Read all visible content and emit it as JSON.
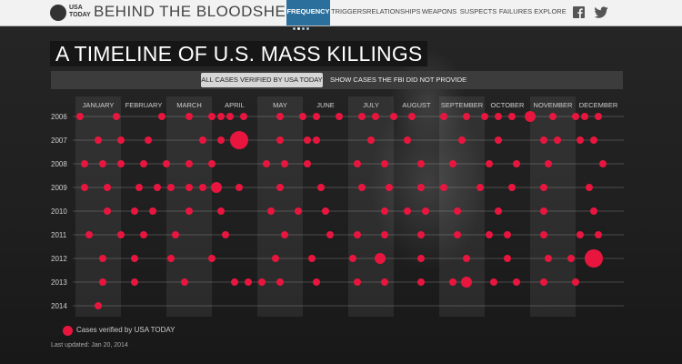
{
  "header": {
    "logo_text_line1": "USA",
    "logo_text_line2": "TODAY",
    "site_title": "BEHIND THE BLOODSHED",
    "nav": [
      {
        "label": "FREQUENCY",
        "active": true
      },
      {
        "label": "TRIGGERS",
        "active": false
      },
      {
        "label": "RELATIONSHIPS",
        "active": false
      },
      {
        "label": "WEAPONS",
        "active": false
      },
      {
        "label": "SUSPECTS",
        "active": false
      },
      {
        "label": "FAILURES",
        "active": false
      },
      {
        "label": "EXPLORE",
        "active": false
      }
    ],
    "social": [
      "facebook-icon",
      "twitter-icon"
    ]
  },
  "title": "A TIMELINE OF U.S. MASS KILLINGS",
  "toggles": {
    "all_label": "ALL CASES VERIFIED BY USA TODAY",
    "hidden_label": "SHOW CASES THE FBI DID NOT PROVIDE"
  },
  "legend": {
    "label": "Cases verified by USA TODAY"
  },
  "updated": "Last updated: Jan 20, 2014",
  "colors": {
    "dot": "#e8163f",
    "nav_active": "#2b6f9c"
  },
  "chart_data": {
    "type": "scatter",
    "months": [
      "JANUARY",
      "FEBRUARY",
      "MARCH",
      "APRIL",
      "MAY",
      "JUNE",
      "JULY",
      "AUGUST",
      "SEPTEMBER",
      "OCTOBER",
      "NOVEMBER",
      "DECEMBER"
    ],
    "years": [
      "2006",
      "2007",
      "2008",
      "2009",
      "2010",
      "2011",
      "2012",
      "2013",
      "2014"
    ],
    "series": [
      {
        "year": "2006",
        "events": [
          {
            "month": 1.1,
            "size": 1
          },
          {
            "month": 1.9,
            "size": 1
          },
          {
            "month": 2.9,
            "size": 1
          },
          {
            "month": 3.5,
            "size": 1
          },
          {
            "month": 4.0,
            "size": 1
          },
          {
            "month": 4.2,
            "size": 1
          },
          {
            "month": 4.4,
            "size": 1
          },
          {
            "month": 4.7,
            "size": 1
          },
          {
            "month": 5.5,
            "size": 1
          },
          {
            "month": 6.0,
            "size": 1
          },
          {
            "month": 6.3,
            "size": 1
          },
          {
            "month": 6.8,
            "size": 1
          },
          {
            "month": 7.3,
            "size": 1
          },
          {
            "month": 7.6,
            "size": 1
          },
          {
            "month": 8.0,
            "size": 1
          },
          {
            "month": 8.4,
            "size": 1
          },
          {
            "month": 9.1,
            "size": 1
          },
          {
            "month": 9.6,
            "size": 1
          },
          {
            "month": 10.0,
            "size": 1
          },
          {
            "month": 10.3,
            "size": 1
          },
          {
            "month": 10.6,
            "size": 1
          },
          {
            "month": 11.0,
            "size": 2
          },
          {
            "month": 11.5,
            "size": 1
          },
          {
            "month": 12.0,
            "size": 1
          },
          {
            "month": 12.2,
            "size": 1
          },
          {
            "month": 12.5,
            "size": 1
          }
        ]
      },
      {
        "year": "2007",
        "events": [
          {
            "month": 1.5,
            "size": 1
          },
          {
            "month": 2.0,
            "size": 1
          },
          {
            "month": 2.6,
            "size": 1
          },
          {
            "month": 3.8,
            "size": 1
          },
          {
            "month": 4.2,
            "size": 1
          },
          {
            "month": 4.6,
            "size": 3
          },
          {
            "month": 5.5,
            "size": 1
          },
          {
            "month": 6.1,
            "size": 1
          },
          {
            "month": 6.3,
            "size": 1
          },
          {
            "month": 7.5,
            "size": 1
          },
          {
            "month": 8.3,
            "size": 1
          },
          {
            "month": 9.5,
            "size": 1
          },
          {
            "month": 10.3,
            "size": 1
          },
          {
            "month": 11.3,
            "size": 1
          },
          {
            "month": 11.6,
            "size": 1
          },
          {
            "month": 12.1,
            "size": 1
          },
          {
            "month": 12.4,
            "size": 1
          }
        ]
      },
      {
        "year": "2008",
        "events": [
          {
            "month": 1.2,
            "size": 1
          },
          {
            "month": 1.6,
            "size": 1
          },
          {
            "month": 2.0,
            "size": 1
          },
          {
            "month": 2.5,
            "size": 1
          },
          {
            "month": 3.0,
            "size": 1
          },
          {
            "month": 3.5,
            "size": 1
          },
          {
            "month": 4.0,
            "size": 1
          },
          {
            "month": 5.2,
            "size": 1
          },
          {
            "month": 5.6,
            "size": 1
          },
          {
            "month": 6.1,
            "size": 1
          },
          {
            "month": 7.2,
            "size": 1
          },
          {
            "month": 7.8,
            "size": 1
          },
          {
            "month": 8.6,
            "size": 1
          },
          {
            "month": 9.3,
            "size": 1
          },
          {
            "month": 10.1,
            "size": 1
          },
          {
            "month": 10.7,
            "size": 1
          },
          {
            "month": 11.4,
            "size": 1
          },
          {
            "month": 12.6,
            "size": 1
          }
        ]
      },
      {
        "year": "2009",
        "events": [
          {
            "month": 1.2,
            "size": 1
          },
          {
            "month": 1.7,
            "size": 1
          },
          {
            "month": 2.4,
            "size": 1
          },
          {
            "month": 2.8,
            "size": 1
          },
          {
            "month": 3.1,
            "size": 1
          },
          {
            "month": 3.5,
            "size": 1
          },
          {
            "month": 3.8,
            "size": 1
          },
          {
            "month": 4.1,
            "size": 2
          },
          {
            "month": 4.6,
            "size": 1
          },
          {
            "month": 5.5,
            "size": 1
          },
          {
            "month": 6.4,
            "size": 1
          },
          {
            "month": 7.3,
            "size": 1
          },
          {
            "month": 7.9,
            "size": 1
          },
          {
            "month": 8.6,
            "size": 1
          },
          {
            "month": 9.1,
            "size": 1
          },
          {
            "month": 9.9,
            "size": 1
          },
          {
            "month": 10.6,
            "size": 1
          },
          {
            "month": 11.3,
            "size": 1
          },
          {
            "month": 12.3,
            "size": 1
          }
        ]
      },
      {
        "year": "2010",
        "events": [
          {
            "month": 1.7,
            "size": 1
          },
          {
            "month": 2.3,
            "size": 1
          },
          {
            "month": 2.7,
            "size": 1
          },
          {
            "month": 3.5,
            "size": 1
          },
          {
            "month": 4.2,
            "size": 1
          },
          {
            "month": 5.3,
            "size": 1
          },
          {
            "month": 5.9,
            "size": 1
          },
          {
            "month": 6.5,
            "size": 1
          },
          {
            "month": 7.8,
            "size": 1
          },
          {
            "month": 8.3,
            "size": 1
          },
          {
            "month": 8.7,
            "size": 1
          },
          {
            "month": 9.4,
            "size": 1
          },
          {
            "month": 10.3,
            "size": 1
          },
          {
            "month": 11.3,
            "size": 1
          },
          {
            "month": 12.4,
            "size": 1
          }
        ]
      },
      {
        "year": "2011",
        "events": [
          {
            "month": 1.3,
            "size": 1
          },
          {
            "month": 2.0,
            "size": 1
          },
          {
            "month": 2.5,
            "size": 1
          },
          {
            "month": 3.2,
            "size": 1
          },
          {
            "month": 4.3,
            "size": 1
          },
          {
            "month": 5.6,
            "size": 1
          },
          {
            "month": 6.6,
            "size": 1
          },
          {
            "month": 7.2,
            "size": 1
          },
          {
            "month": 7.8,
            "size": 1
          },
          {
            "month": 8.6,
            "size": 1
          },
          {
            "month": 9.4,
            "size": 1
          },
          {
            "month": 10.1,
            "size": 1
          },
          {
            "month": 10.5,
            "size": 1
          },
          {
            "month": 11.3,
            "size": 1
          },
          {
            "month": 12.1,
            "size": 1
          },
          {
            "month": 12.5,
            "size": 1
          }
        ]
      },
      {
        "year": "2012",
        "events": [
          {
            "month": 1.6,
            "size": 1
          },
          {
            "month": 2.3,
            "size": 1
          },
          {
            "month": 3.1,
            "size": 1
          },
          {
            "month": 4.0,
            "size": 1
          },
          {
            "month": 5.4,
            "size": 1
          },
          {
            "month": 6.2,
            "size": 1
          },
          {
            "month": 7.1,
            "size": 1
          },
          {
            "month": 7.7,
            "size": 2
          },
          {
            "month": 8.6,
            "size": 1
          },
          {
            "month": 9.6,
            "size": 1
          },
          {
            "month": 10.5,
            "size": 1
          },
          {
            "month": 11.4,
            "size": 1
          },
          {
            "month": 11.9,
            "size": 1
          },
          {
            "month": 12.4,
            "size": 3
          }
        ]
      },
      {
        "year": "2013",
        "events": [
          {
            "month": 1.6,
            "size": 1
          },
          {
            "month": 2.3,
            "size": 1
          },
          {
            "month": 3.4,
            "size": 1
          },
          {
            "month": 4.5,
            "size": 1
          },
          {
            "month": 4.8,
            "size": 1
          },
          {
            "month": 5.1,
            "size": 1
          },
          {
            "month": 5.5,
            "size": 1
          },
          {
            "month": 6.3,
            "size": 1
          },
          {
            "month": 7.2,
            "size": 1
          },
          {
            "month": 7.8,
            "size": 1
          },
          {
            "month": 8.6,
            "size": 1
          },
          {
            "month": 9.3,
            "size": 1
          },
          {
            "month": 9.6,
            "size": 2
          },
          {
            "month": 10.2,
            "size": 1
          },
          {
            "month": 10.7,
            "size": 1
          },
          {
            "month": 11.3,
            "size": 1
          },
          {
            "month": 12.0,
            "size": 1
          }
        ]
      },
      {
        "year": "2014",
        "events": [
          {
            "month": 1.5,
            "size": 1
          }
        ]
      }
    ]
  }
}
